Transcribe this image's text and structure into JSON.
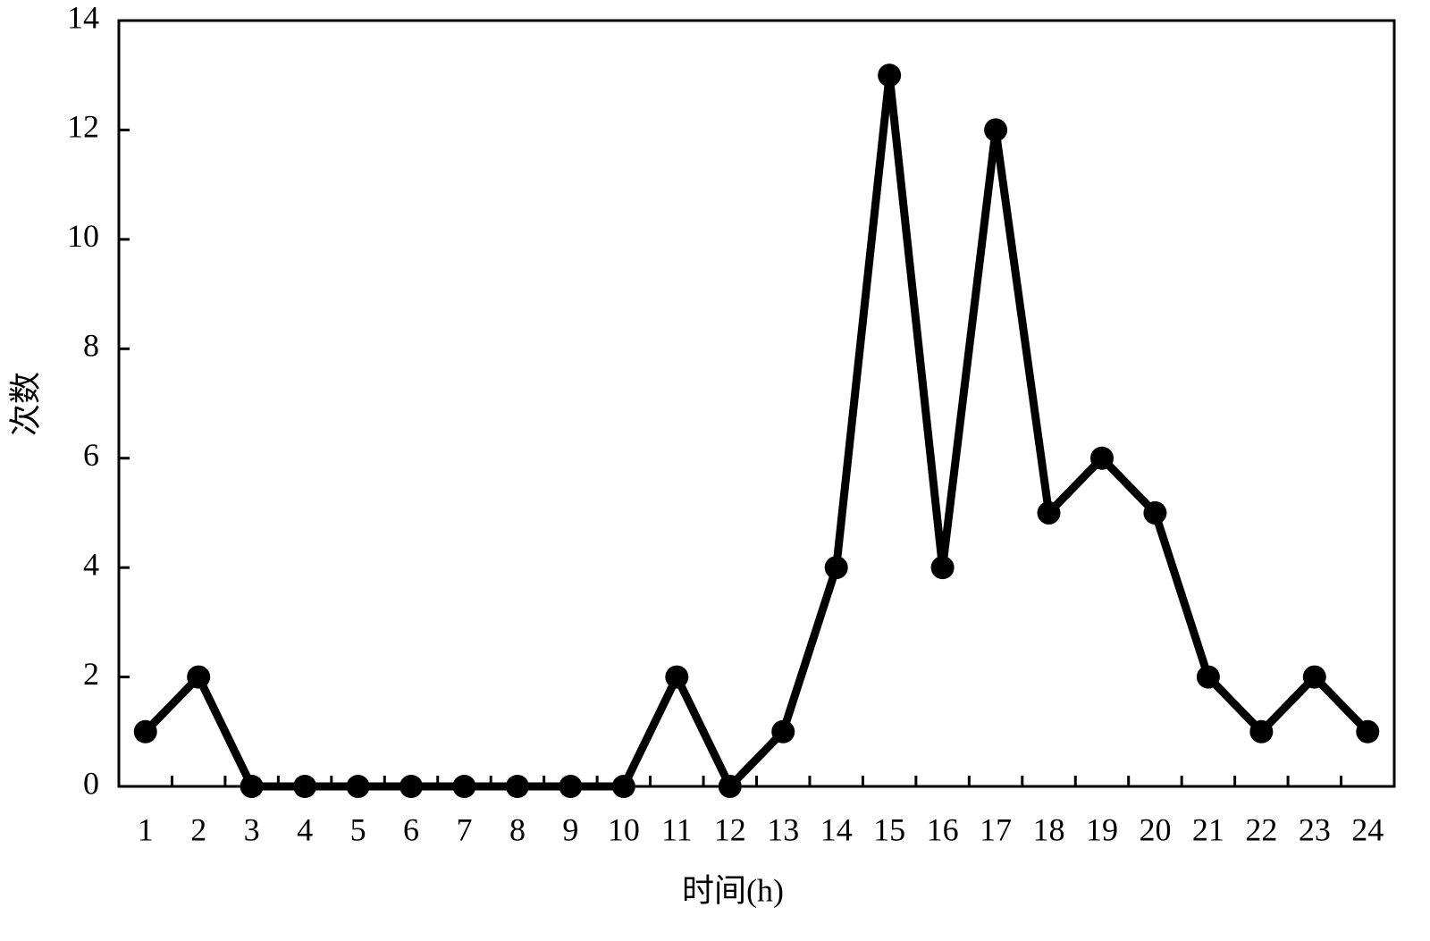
{
  "chart_data": {
    "type": "line",
    "x_label": "时间(h)",
    "y_label": "次数",
    "categories": [
      "1",
      "2",
      "3",
      "4",
      "5",
      "6",
      "7",
      "8",
      "9",
      "10",
      "11",
      "12",
      "13",
      "14",
      "15",
      "16",
      "17",
      "18",
      "19",
      "20",
      "21",
      "22",
      "23",
      "24"
    ],
    "series": [
      {
        "color": "#000000",
        "values": [
          1,
          2,
          0,
          0,
          0,
          0,
          0,
          0,
          0,
          0,
          2,
          0,
          1,
          4,
          13,
          4,
          12,
          5,
          6,
          5,
          2,
          1,
          2,
          1
        ]
      }
    ],
    "ylim": [
      0,
      14
    ],
    "yticks": [
      0,
      2,
      4,
      6,
      8,
      10,
      12,
      14
    ],
    "grid": false
  }
}
